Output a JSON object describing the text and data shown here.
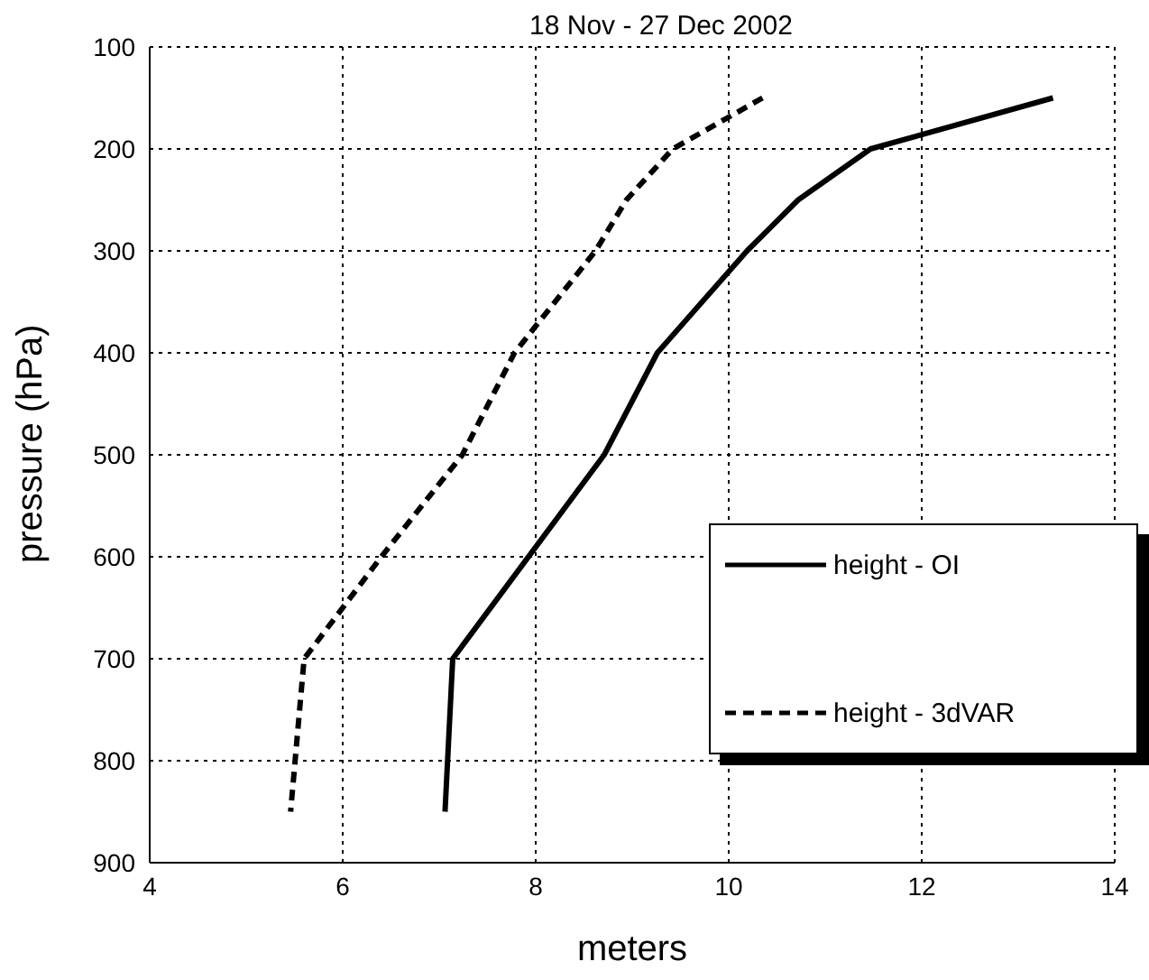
{
  "chart_data": {
    "type": "line",
    "title": "18 Nov - 27 Dec 2002",
    "xlabel": "meters",
    "ylabel": "pressure (hPa)",
    "series": [
      {
        "name": "height - OI",
        "color": "#000000",
        "line_style": "solid",
        "x": [
          13.36,
          11.47,
          10.72,
          10.19,
          9.26,
          8.71,
          7.14,
          7.06
        ],
        "values": [
          150,
          200,
          250,
          300,
          400,
          500,
          700,
          850
        ]
      },
      {
        "name": "height - 3dVAR",
        "color": "#000000",
        "line_style": "dashed",
        "x": [
          10.35,
          9.42,
          8.94,
          8.62,
          7.78,
          7.24,
          6.4,
          5.6,
          5.46
        ],
        "values": [
          150,
          200,
          250,
          300,
          400,
          500,
          600,
          700,
          850
        ]
      }
    ],
    "xlim": [
      4,
      14
    ],
    "xticks": [
      4,
      6,
      8,
      10,
      12,
      14
    ],
    "ylim": [
      900,
      100
    ],
    "yticks": [
      100,
      200,
      300,
      400,
      500,
      600,
      700,
      800,
      900
    ],
    "grid": true,
    "legend": "right",
    "marker": "none"
  }
}
